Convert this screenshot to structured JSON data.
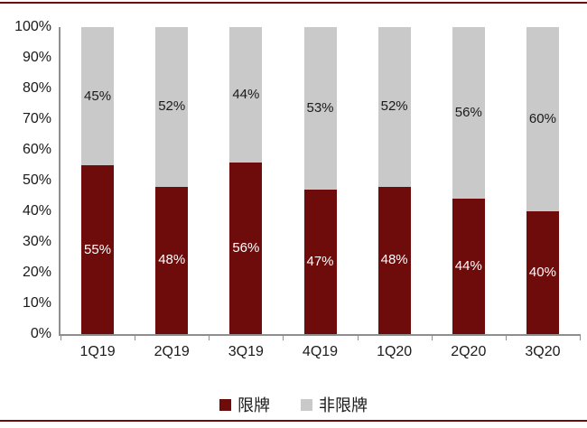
{
  "chart_data": {
    "type": "bar",
    "variant": "stacked-100-percent-column",
    "categories": [
      "1Q19",
      "2Q19",
      "3Q19",
      "4Q19",
      "1Q20",
      "2Q20",
      "3Q20"
    ],
    "series": [
      {
        "name": "限牌",
        "color": "#6E0B0B",
        "label_color": "#ffffff",
        "values": [
          55,
          48,
          56,
          47,
          48,
          44,
          40
        ]
      },
      {
        "name": "非限牌",
        "color": "#C9C9C9",
        "label_color": "#1a1a1a",
        "values": [
          45,
          52,
          44,
          53,
          52,
          56,
          60
        ]
      }
    ],
    "data_labels": {
      "series_0": [
        "55%",
        "48%",
        "56%",
        "47%",
        "48%",
        "44%",
        "40%"
      ],
      "series_1": [
        "45%",
        "52%",
        "44%",
        "53%",
        "52%",
        "56%",
        "60%"
      ]
    },
    "y_axis": {
      "min": 0,
      "max": 100,
      "step": 10,
      "tick_labels": [
        "0%",
        "10%",
        "20%",
        "30%",
        "40%",
        "50%",
        "60%",
        "70%",
        "80%",
        "90%",
        "100%"
      ]
    },
    "grid": false,
    "legend_position": "bottom"
  },
  "frame": {
    "top_rule_color": "#6E0B0B",
    "bottom_rule_color": "#6E0B0B",
    "axis_line_color": "#8E8E8E",
    "background_color": "#ffffff"
  }
}
